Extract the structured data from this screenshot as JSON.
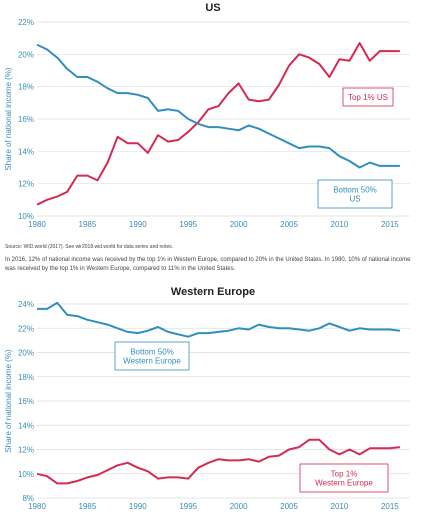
{
  "colors": {
    "top": "#d42b52",
    "bottom": "#2f8fbd",
    "grid": "#dddddd",
    "axis": "#3a8db8"
  },
  "source_text": "Source: WID.world (2017). See wir2018.wid.world for data series and notes.",
  "note_text": "In 2016, 12% of national income was received by the top 1% in Western Europe, compared to 20% in the United States. In 1980, 10% of national income was received by the top 1% in Western Europe, compared to 11% in the United States.",
  "chart_data": [
    {
      "type": "line",
      "title": "US",
      "ylabel": "Share of national income (%)",
      "ylim": [
        10,
        22
      ],
      "yticks": [
        10,
        12,
        14,
        16,
        18,
        20,
        22
      ],
      "xlim": [
        1980,
        2017
      ],
      "xticks": [
        1980,
        1985,
        1990,
        1995,
        2000,
        2005,
        2010,
        2015
      ],
      "grid": true,
      "x": [
        1980,
        1981,
        1982,
        1983,
        1984,
        1985,
        1986,
        1987,
        1988,
        1989,
        1990,
        1991,
        1992,
        1993,
        1994,
        1995,
        1996,
        1997,
        1998,
        1999,
        2000,
        2001,
        2002,
        2003,
        2004,
        2005,
        2006,
        2007,
        2008,
        2009,
        2010,
        2011,
        2012,
        2013,
        2014,
        2015,
        2016
      ],
      "series": [
        {
          "key": "top",
          "label_lines": [
            "Top 1% US"
          ],
          "values": [
            10.7,
            11.0,
            11.2,
            11.5,
            12.5,
            12.5,
            12.2,
            13.3,
            14.9,
            14.5,
            14.5,
            13.9,
            15.0,
            14.6,
            14.7,
            15.2,
            15.8,
            16.6,
            16.8,
            17.6,
            18.2,
            17.2,
            17.1,
            17.2,
            18.1,
            19.3,
            20.0,
            19.8,
            19.4,
            18.6,
            19.7,
            19.6,
            20.7,
            19.6,
            20.2,
            20.2,
            20.2
          ]
        },
        {
          "key": "bottom",
          "label_lines": [
            "Bottom 50%",
            "US"
          ],
          "values": [
            20.6,
            20.3,
            19.8,
            19.1,
            18.6,
            18.6,
            18.3,
            17.9,
            17.6,
            17.6,
            17.5,
            17.3,
            16.5,
            16.6,
            16.5,
            16.0,
            15.7,
            15.5,
            15.5,
            15.4,
            15.3,
            15.6,
            15.4,
            15.1,
            14.8,
            14.5,
            14.2,
            14.3,
            14.3,
            14.2,
            13.7,
            13.4,
            13.0,
            13.3,
            13.1,
            13.1,
            13.1
          ]
        }
      ]
    },
    {
      "type": "line",
      "title": "Western Europe",
      "ylabel": "Share of national income (%)",
      "ylim": [
        8,
        24
      ],
      "yticks": [
        8,
        10,
        12,
        14,
        16,
        18,
        20,
        22,
        24
      ],
      "xlim": [
        1980,
        2017
      ],
      "xticks": [
        1980,
        1985,
        1990,
        1995,
        2000,
        2005,
        2010,
        2015
      ],
      "grid": true,
      "x": [
        1980,
        1981,
        1982,
        1983,
        1984,
        1985,
        1986,
        1987,
        1988,
        1989,
        1990,
        1991,
        1992,
        1993,
        1994,
        1995,
        1996,
        1997,
        1998,
        1999,
        2000,
        2001,
        2002,
        2003,
        2004,
        2005,
        2006,
        2007,
        2008,
        2009,
        2010,
        2011,
        2012,
        2013,
        2014,
        2015,
        2016
      ],
      "series": [
        {
          "key": "bottom",
          "label_lines": [
            "Bottom 50%",
            "Western Europe"
          ],
          "values": [
            23.6,
            23.6,
            24.1,
            23.1,
            23.0,
            22.7,
            22.5,
            22.3,
            22.0,
            21.7,
            21.6,
            21.8,
            22.1,
            21.7,
            21.5,
            21.3,
            21.6,
            21.6,
            21.7,
            21.8,
            22.0,
            21.9,
            22.3,
            22.1,
            22.0,
            22.0,
            21.9,
            21.8,
            22.0,
            22.4,
            22.1,
            21.8,
            22.0,
            21.9,
            21.9,
            21.9,
            21.8
          ]
        },
        {
          "key": "top",
          "label_lines": [
            "Top 1%",
            "Western Europe"
          ],
          "values": [
            10.0,
            9.8,
            9.2,
            9.2,
            9.4,
            9.7,
            9.9,
            10.3,
            10.7,
            10.9,
            10.5,
            10.2,
            9.6,
            9.7,
            9.7,
            9.6,
            10.5,
            10.9,
            11.2,
            11.1,
            11.1,
            11.2,
            11.0,
            11.4,
            11.5,
            12.0,
            12.2,
            12.8,
            12.8,
            12.0,
            11.6,
            12.0,
            11.6,
            12.1,
            12.1,
            12.1,
            12.2
          ]
        }
      ]
    }
  ]
}
